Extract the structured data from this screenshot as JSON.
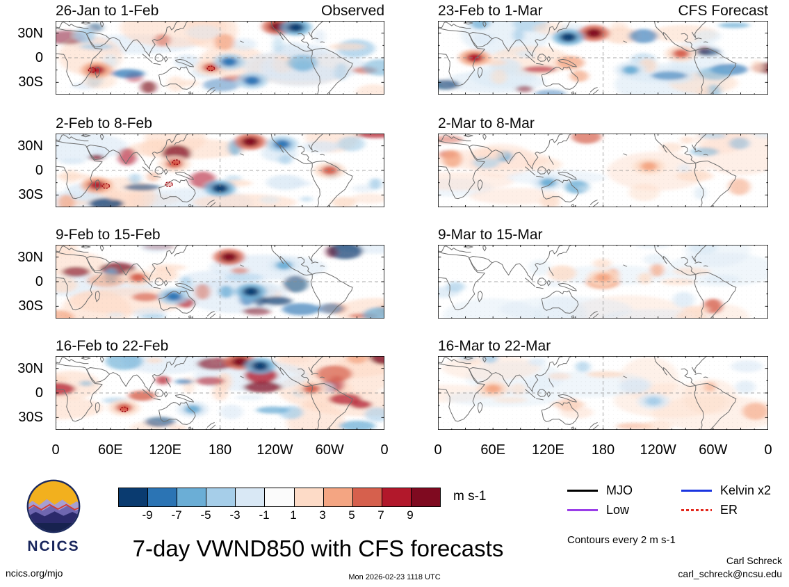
{
  "title": "7-day VWND850 with CFS forecasts",
  "logo": {
    "text": "NCICS"
  },
  "meta": {
    "website": "ncics.org/mjo",
    "timestamp": "Mon 2026-02-23 1118 UTC",
    "credit_name": "Carl Schreck",
    "credit_email": "carl_schreck@ncsu.edu"
  },
  "chart_data": {
    "type": "heatmap",
    "variable": "VWND850 7-day mean anomalies",
    "units": "m s-1",
    "columns": {
      "observed": "Observed",
      "forecast": "CFS Forecast"
    },
    "lat_ticks": [
      "30N",
      "0",
      "30S"
    ],
    "lon_ticks": [
      "0",
      "60E",
      "120E",
      "180",
      "120W",
      "60W",
      "0"
    ],
    "panels": [
      {
        "label": "26-Jan to 1-Feb",
        "column": "Observed",
        "intensity": 1,
        "seed": 11,
        "features": [
          {
            "lon": 243,
            "lat": 38,
            "sign": 1,
            "level": 4
          },
          {
            "lon": 263,
            "lat": 37,
            "sign": -1,
            "level": 4
          },
          {
            "lon": 45,
            "lat": -15,
            "sign": 1,
            "level": 3
          },
          {
            "lon": 170,
            "lat": -12,
            "sign": 1,
            "level": 2
          },
          {
            "lon": 190,
            "lat": -5,
            "sign": -1,
            "level": 3
          },
          {
            "lon": 215,
            "lat": -28,
            "sign": -1,
            "level": 3
          }
        ],
        "er_contours": [
          [
            40,
            -15
          ],
          [
            170,
            -13
          ]
        ]
      },
      {
        "label": "2-Feb to 8-Feb",
        "column": "Observed",
        "intensity": 1,
        "seed": 22,
        "features": [
          {
            "lon": 213,
            "lat": 35,
            "sign": 1,
            "level": 4
          },
          {
            "lon": 248,
            "lat": 32,
            "sign": -1,
            "level": 3
          },
          {
            "lon": 180,
            "lat": -22,
            "sign": -1,
            "level": 4
          },
          {
            "lon": 45,
            "lat": -18,
            "sign": 1,
            "level": 3
          },
          {
            "lon": 130,
            "lat": 8,
            "sign": 1,
            "level": 2
          },
          {
            "lon": 300,
            "lat": 0,
            "sign": 1,
            "level": 2
          }
        ],
        "er_contours": [
          [
            132,
            10
          ],
          [
            55,
            -19
          ],
          [
            124,
            -17
          ]
        ]
      },
      {
        "label": "9-Feb to 15-Feb",
        "column": "Observed",
        "intensity": 1,
        "seed": 33,
        "features": [
          {
            "lon": 190,
            "lat": 30,
            "sign": 1,
            "level": 4
          },
          {
            "lon": 214,
            "lat": -12,
            "sign": -1,
            "level": 4
          },
          {
            "lon": 129,
            "lat": -18,
            "sign": -1,
            "level": 3
          },
          {
            "lon": 250,
            "lat": 20,
            "sign": -1,
            "level": 2
          },
          {
            "lon": 90,
            "lat": 5,
            "sign": 1,
            "level": 2
          }
        ],
        "er_contours": []
      },
      {
        "label": "16-Feb to 22-Feb",
        "column": "Observed",
        "intensity": 1,
        "seed": 44,
        "features": [
          {
            "lon": 202,
            "lat": 38,
            "sign": 1,
            "level": 4
          },
          {
            "lon": 224,
            "lat": 33,
            "sign": -1,
            "level": 4
          },
          {
            "lon": 150,
            "lat": -20,
            "sign": -1,
            "level": 2
          },
          {
            "lon": 75,
            "lat": -18,
            "sign": 1,
            "level": 2
          },
          {
            "lon": 280,
            "lat": 5,
            "sign": 1,
            "level": 2
          }
        ],
        "er_contours": [
          [
            75,
            -20
          ]
        ]
      },
      {
        "label": "23-Feb to 1-Mar",
        "column": "CFS Forecast",
        "intensity": 0.9,
        "seed": 55,
        "features": [
          {
            "lon": 170,
            "lat": 30,
            "sign": 1,
            "level": 4
          },
          {
            "lon": 142,
            "lat": 25,
            "sign": -1,
            "level": 4
          },
          {
            "lon": 40,
            "lat": 0,
            "sign": 1,
            "level": 3
          },
          {
            "lon": 265,
            "lat": 5,
            "sign": 1,
            "level": 2
          },
          {
            "lon": 210,
            "lat": -15,
            "sign": -1,
            "level": 2
          }
        ],
        "er_contours": []
      },
      {
        "label": "2-Mar to 8-Mar",
        "column": "CFS Forecast",
        "intensity": 0.45,
        "seed": 66,
        "features": [
          {
            "lon": 120,
            "lat": -15,
            "sign": -1,
            "level": 2
          },
          {
            "lon": 230,
            "lat": 5,
            "sign": 1,
            "level": 1
          }
        ],
        "er_contours": []
      },
      {
        "label": "9-Mar to 15-Mar",
        "column": "CFS Forecast",
        "intensity": 0.35,
        "seed": 77,
        "features": [
          {
            "lon": 180,
            "lat": 5,
            "sign": 1,
            "level": 1
          }
        ],
        "er_contours": []
      },
      {
        "label": "16-Mar to 22-Mar",
        "column": "CFS Forecast",
        "intensity": 0.3,
        "seed": 88,
        "features": [
          {
            "lon": 235,
            "lat": -10,
            "sign": -1,
            "level": 1
          },
          {
            "lon": 60,
            "lat": 5,
            "sign": 1,
            "level": 1
          }
        ],
        "er_contours": []
      }
    ],
    "colorbar": {
      "label": "m s-1",
      "ticks": [
        "-9",
        "-7",
        "-5",
        "-3",
        "-1",
        "1",
        "3",
        "5",
        "7",
        "9"
      ],
      "colors": [
        "#0a3b70",
        "#2b74b4",
        "#6baed6",
        "#a6cee9",
        "#d9e8f5",
        "#fbfbfb",
        "#fddbc7",
        "#f4a582",
        "#d6604d",
        "#b2182b",
        "#7f0a20"
      ]
    },
    "legend": [
      {
        "label": "MJO",
        "color": "#000000",
        "dashed": false
      },
      {
        "label": "Kelvin x2",
        "color": "#1a35e0",
        "dashed": false
      },
      {
        "label": "Low",
        "color": "#9a3de8",
        "dashed": false
      },
      {
        "label": "ER",
        "color": "#e3261b",
        "dashed": true
      }
    ],
    "contours_note": "Contours every 2 m s-1"
  }
}
